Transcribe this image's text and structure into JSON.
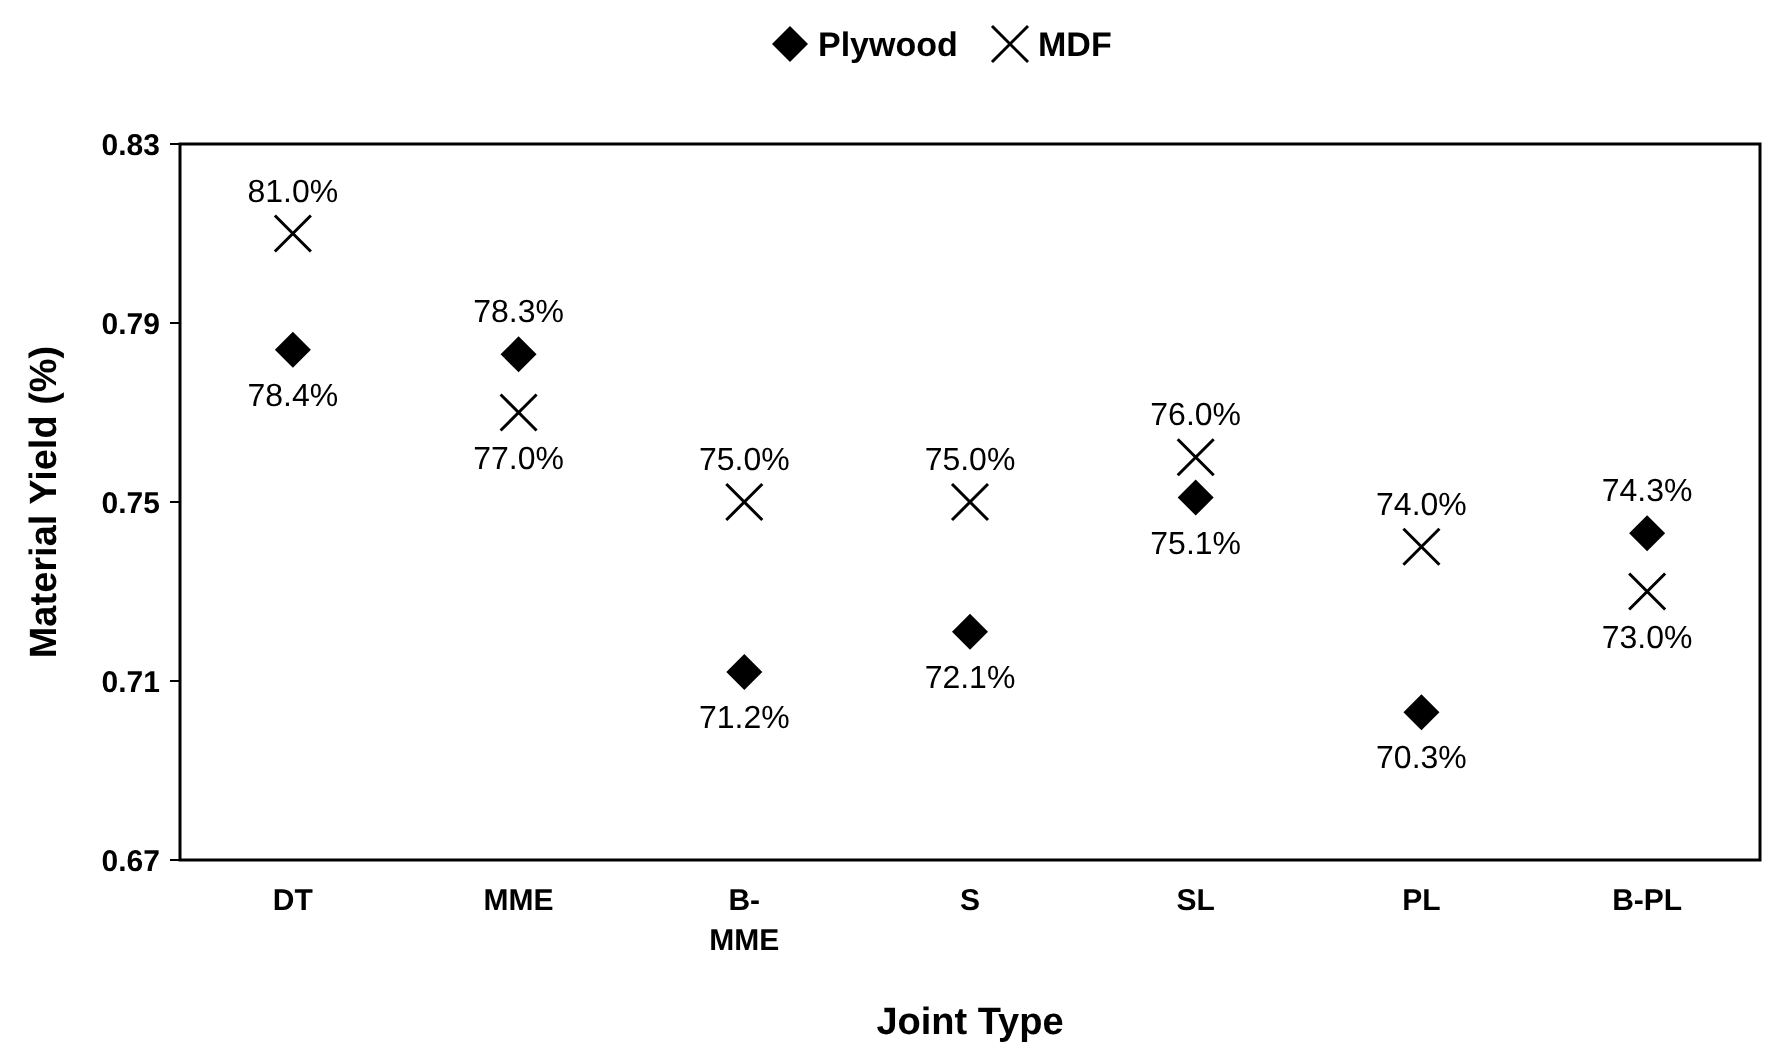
{
  "chart_data": {
    "type": "scatter",
    "xlabel": "Joint Type",
    "ylabel": "Material Yield (%)",
    "categories": [
      "DT",
      "MME",
      "B-MME",
      "S",
      "SL",
      "PL",
      "B-PL"
    ],
    "series": [
      {
        "name": "Plywood",
        "color": "#000000",
        "marker": "diamond",
        "values": [
          0.784,
          0.783,
          0.712,
          0.721,
          0.751,
          0.703,
          0.743
        ],
        "value_labels": [
          "78.4%",
          "78.3%",
          "71.2%",
          "72.1%",
          "75.1%",
          "70.3%",
          "74.3%"
        ]
      },
      {
        "name": "MDF",
        "color": "#000000",
        "marker": "cross",
        "values": [
          0.81,
          0.77,
          0.75,
          0.75,
          0.76,
          0.74,
          0.73
        ],
        "value_labels": [
          "81.0%",
          "77.0%",
          "75.0%",
          "75.0%",
          "76.0%",
          "74.0%",
          "73.0%"
        ]
      }
    ],
    "ylim": [
      0.67,
      0.83
    ],
    "yticks": [
      0.67,
      0.71,
      0.75,
      0.79,
      0.83
    ],
    "grid": false,
    "legend": "top"
  }
}
